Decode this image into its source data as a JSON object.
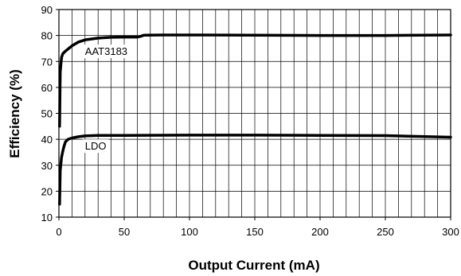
{
  "chart_data": {
    "type": "line",
    "title": "",
    "xlabel": "Output Current (mA)",
    "ylabel": "Efficiency (%)",
    "xlim": [
      0,
      300
    ],
    "ylim": [
      10,
      90
    ],
    "xticks": [
      0,
      50,
      100,
      150,
      200,
      250,
      300
    ],
    "xtick_labels": [
      "0",
      "50",
      "100",
      "150",
      "200",
      "250",
      "300"
    ],
    "yticks": [
      10,
      20,
      30,
      40,
      50,
      60,
      70,
      80,
      90
    ],
    "ytick_labels": [
      "10",
      "20",
      "30",
      "40",
      "50",
      "60",
      "70",
      "80",
      "90"
    ],
    "grid": true,
    "series": [
      {
        "name": "AAT3183",
        "label_at": [
          20,
          72.5
        ],
        "x": [
          0.5,
          1,
          2,
          3,
          5,
          7,
          10,
          15,
          20,
          30,
          40,
          50,
          60,
          62,
          65,
          80,
          100,
          150,
          200,
          250,
          300
        ],
        "y": [
          45,
          66,
          71.5,
          73,
          74,
          74.8,
          76,
          77.5,
          78.3,
          79,
          79.3,
          79.4,
          79.4,
          79.6,
          80.1,
          80.2,
          80.2,
          80.1,
          80,
          80,
          80.2
        ],
        "color": "#000000"
      },
      {
        "name": "LDO",
        "label_at": [
          20,
          36
        ],
        "x": [
          0.5,
          1,
          2,
          3,
          4,
          5,
          7,
          10,
          15,
          20,
          30,
          50,
          100,
          150,
          200,
          250,
          300
        ],
        "y": [
          15,
          28,
          33,
          35.5,
          37.5,
          39,
          40,
          40.5,
          41,
          41.3,
          41.5,
          41.5,
          41.6,
          41.6,
          41.5,
          41.4,
          40.8
        ],
        "color": "#000000"
      }
    ]
  }
}
